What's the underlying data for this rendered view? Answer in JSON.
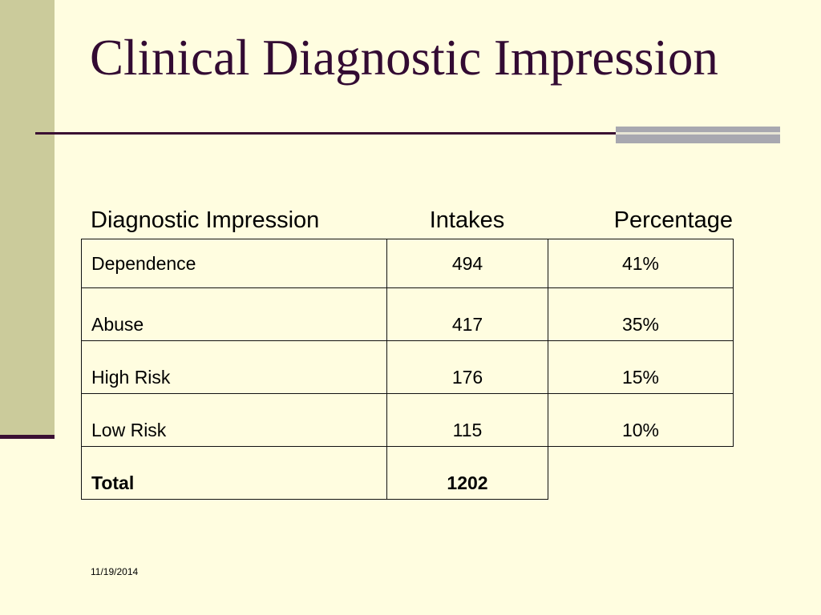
{
  "slide": {
    "title": "Clinical Diagnostic Impression",
    "date": "11/19/2014"
  },
  "table": {
    "headers": {
      "impression": "Diagnostic Impression",
      "intakes": "Intakes",
      "percentage": "Percentage"
    },
    "rows": [
      {
        "label": "Dependence",
        "intakes": "494",
        "percentage": "41%"
      },
      {
        "label": "Abuse",
        "intakes": "417",
        "percentage": "35%"
      },
      {
        "label": "High Risk",
        "intakes": "176",
        "percentage": "15%"
      },
      {
        "label": "Low Risk",
        "intakes": "115",
        "percentage": "10%"
      }
    ],
    "total": {
      "label": "Total",
      "intakes": "1202"
    }
  },
  "colors": {
    "background": "#FFFDE0",
    "side_bar": "#CBCB9B",
    "title_text": "#330B33",
    "rule": "#3A0F33",
    "accent_bar": "#A8A8B0"
  }
}
